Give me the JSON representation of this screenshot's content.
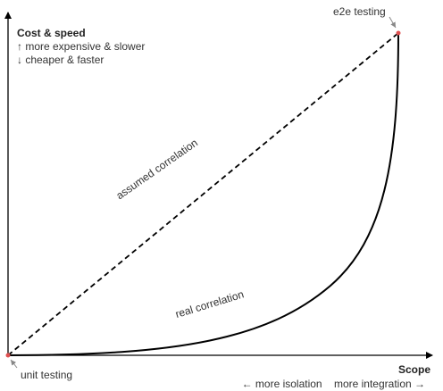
{
  "cost_axis": {
    "title": "Cost & speed",
    "up": "↑ more expensive & slower",
    "down": "↓ cheaper & faster"
  },
  "scope_axis": {
    "title": "Scope",
    "left": "← more isolation",
    "right": "more integration →"
  },
  "points": {
    "e2e": "e2e testing",
    "unit": "unit testing"
  },
  "curves": {
    "assumed": "assumed correlation",
    "real": "real correlation"
  },
  "colors": {
    "point": "#e05050",
    "line": "#000000",
    "pointer": "#888888"
  }
}
